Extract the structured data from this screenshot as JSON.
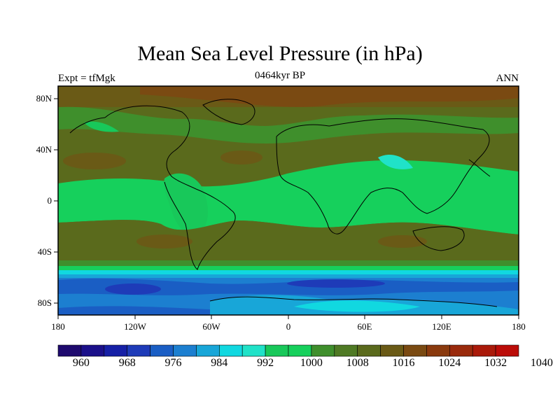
{
  "title": "Mean Sea Level Pressure (in hPa)",
  "left_label": "Expt = tfMgk",
  "center_label": "0464kyr BP",
  "right_label": "ANN",
  "lat_ticks": [
    "80N",
    "40N",
    "0",
    "40S",
    "80S"
  ],
  "lon_ticks": [
    "180",
    "120W",
    "60W",
    "0",
    "60E",
    "120E",
    "180"
  ],
  "colorbar": {
    "colors": [
      "#1e0a6e",
      "#1b108a",
      "#1620a6",
      "#1e3bb8",
      "#1a5ec4",
      "#1c7fd0",
      "#18a6d8",
      "#11d8e0",
      "#20e2c8",
      "#18c85a",
      "#16d05c",
      "#3f8f2c",
      "#4f7a24",
      "#5a6a1c",
      "#6a5a16",
      "#7a4a12",
      "#8a3a0e",
      "#9a2a0c",
      "#aa1a0a",
      "#bb0c08"
    ],
    "labels": [
      "960",
      "968",
      "976",
      "984",
      "992",
      "1000",
      "1008",
      "1016",
      "1024",
      "1032",
      "1040"
    ]
  }
}
